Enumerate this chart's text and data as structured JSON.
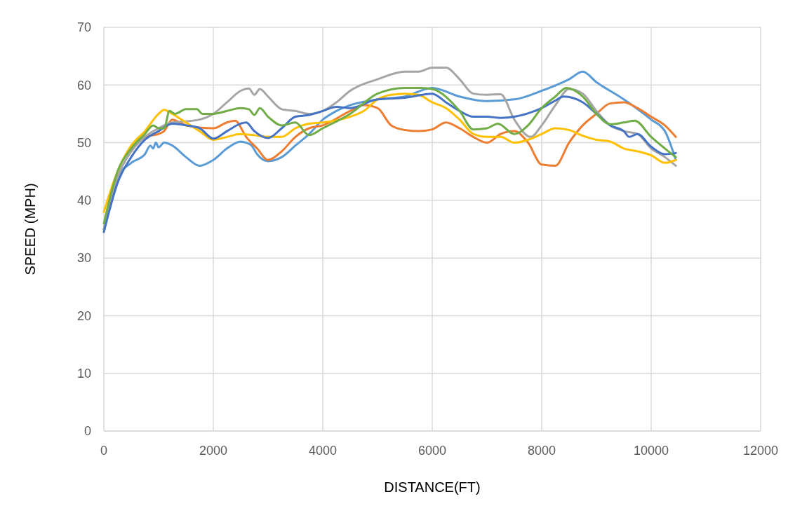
{
  "chart_data": {
    "type": "line",
    "xlabel": "DISTANCE(FT)",
    "ylabel": "SPEED (MPH)",
    "xlim": [
      0,
      12000
    ],
    "xticks": [
      0,
      2000,
      4000,
      6000,
      8000,
      10000,
      12000
    ],
    "ylim": [
      0,
      70
    ],
    "yticks": [
      0,
      10,
      20,
      30,
      40,
      50,
      60,
      70
    ],
    "grid": true,
    "series": [
      {
        "color": "#5b9bd5",
        "x": [
          0,
          250,
          500,
          750,
          850,
          900,
          950,
          1000,
          1100,
          1250,
          1500,
          1750,
          2000,
          2250,
          2500,
          2600,
          2700,
          2800,
          3000,
          3250,
          3500,
          3750,
          4000,
          4250,
          4500,
          5000,
          5500,
          6000,
          6500,
          7000,
          7500,
          8000,
          8500,
          8750,
          9000,
          9500,
          10000,
          10250,
          10450
        ],
        "values": [
          35,
          44,
          46.5,
          48,
          49.5,
          49,
          50,
          49.2,
          50,
          49.5,
          47.5,
          46,
          47,
          49,
          50.2,
          50,
          49.5,
          48,
          46.8,
          47.5,
          49.5,
          51.5,
          54,
          55.5,
          56.5,
          57.5,
          58,
          59.5,
          58,
          57.2,
          57.5,
          59,
          61,
          62.3,
          60.5,
          57.5,
          54,
          52,
          47
        ]
      },
      {
        "color": "#ed7d31",
        "x": [
          500,
          750,
          1000,
          1100,
          1250,
          1500,
          2000,
          2250,
          2400,
          2600,
          2800,
          3000,
          3250,
          3500,
          3750,
          4000,
          4500,
          4750,
          5000,
          5250,
          5500,
          5750,
          6000,
          6250,
          6500,
          6750,
          7000,
          7250,
          7500,
          7750,
          8000,
          8250,
          8500,
          8750,
          9000,
          9250,
          9500,
          9750,
          10000,
          10250,
          10450
        ],
        "values": [
          48.5,
          51,
          51.5,
          52,
          54,
          53,
          52.5,
          53.5,
          53.8,
          51,
          49,
          47,
          48.5,
          51,
          52.5,
          53,
          55.5,
          56.5,
          56,
          53,
          52.2,
          52,
          52.3,
          53.5,
          52.5,
          51,
          50,
          51.5,
          52,
          50,
          46.2,
          46,
          50,
          53,
          55,
          56.8,
          57,
          56,
          54.5,
          53,
          51
        ]
      },
      {
        "color": "#a5a5a5",
        "x": [
          0,
          250,
          500,
          750,
          1000,
          1250,
          1500,
          1750,
          2000,
          2250,
          2500,
          2650,
          2750,
          2850,
          3000,
          3250,
          3500,
          3750,
          4000,
          4250,
          4500,
          5000,
          5500,
          5750,
          6000,
          6250,
          6500,
          6750,
          7000,
          7250,
          7500,
          7800,
          8000,
          8250,
          8500,
          8750,
          9000,
          9250,
          9500,
          9750,
          10000,
          10250,
          10450
        ],
        "values": [
          35,
          44,
          48.5,
          51,
          52.5,
          53.5,
          53.7,
          54,
          55,
          57,
          59,
          59.4,
          58.3,
          59.3,
          58,
          55.8,
          55.5,
          55,
          55.5,
          57,
          59,
          61,
          62.3,
          62.3,
          63,
          63,
          61,
          58.5,
          58.3,
          58.4,
          54,
          51,
          53,
          56.5,
          59.3,
          58.5,
          55.5,
          53,
          52,
          51.5,
          49,
          47.5,
          46
        ]
      },
      {
        "color": "#ffc000",
        "x": [
          0,
          250,
          500,
          750,
          1000,
          1100,
          1250,
          1500,
          1750,
          2000,
          2250,
          2500,
          2750,
          3000,
          3250,
          3500,
          3750,
          4000,
          4500,
          4750,
          5000,
          5250,
          5500,
          5750,
          6000,
          6250,
          6500,
          6750,
          7000,
          7250,
          7500,
          7750,
          8000,
          8250,
          8500,
          8750,
          9000,
          9250,
          9500,
          9750,
          10000,
          10250,
          10450
        ],
        "values": [
          38,
          45,
          49.5,
          52,
          55,
          55.7,
          55,
          53.5,
          52,
          50.5,
          51,
          51.5,
          51.3,
          51,
          51,
          52.5,
          53.3,
          53.5,
          54.5,
          55.5,
          57.5,
          58.3,
          58.5,
          58.3,
          57,
          56,
          54,
          51.5,
          51,
          51,
          50,
          50.5,
          51.5,
          52.5,
          52.2,
          51.2,
          50.5,
          50.2,
          49,
          48.5,
          47.8,
          46.5,
          47
        ]
      },
      {
        "color": "#4472c4",
        "x": [
          0,
          250,
          500,
          750,
          1000,
          1250,
          1500,
          1750,
          2000,
          2250,
          2500,
          2600,
          2750,
          3000,
          3250,
          3500,
          3750,
          4000,
          4250,
          4500,
          5000,
          5500,
          6000,
          6250,
          6500,
          6750,
          7000,
          7250,
          7500,
          8000,
          8250,
          8400,
          8750,
          9000,
          9250,
          9500,
          9600,
          9750,
          10000,
          10250,
          10450
        ],
        "values": [
          34.5,
          43,
          47.5,
          50.5,
          52,
          53.3,
          53,
          52.5,
          50.7,
          52,
          53.3,
          53.5,
          52,
          50.8,
          52.5,
          54.5,
          54.8,
          55.5,
          56.2,
          56,
          57.5,
          57.8,
          58.5,
          57,
          55.5,
          54.5,
          54.5,
          54.3,
          54.5,
          56,
          57.3,
          58,
          57,
          55,
          53,
          52,
          51,
          51.5,
          49.3,
          48,
          48.2
        ]
      },
      {
        "color": "#70ad47",
        "x": [
          0,
          250,
          500,
          750,
          900,
          1000,
          1100,
          1200,
          1300,
          1500,
          1700,
          1800,
          2000,
          2250,
          2500,
          2650,
          2750,
          2850,
          3000,
          3250,
          3500,
          3750,
          4000,
          4500,
          5000,
          5500,
          5800,
          6000,
          6500,
          6750,
          7000,
          7200,
          7500,
          7750,
          8000,
          8250,
          8450,
          8750,
          9000,
          9250,
          9500,
          9700,
          10000,
          10250,
          10450
        ],
        "values": [
          36,
          45,
          49,
          51.5,
          53,
          52.5,
          52.5,
          55.5,
          55,
          55.8,
          55.8,
          55,
          55,
          55.5,
          56,
          55.8,
          54.8,
          56,
          54.5,
          53,
          53.5,
          51.3,
          52.5,
          55,
          58.5,
          59.5,
          59.5,
          59.3,
          55.5,
          52.3,
          52.5,
          53.3,
          51.5,
          53,
          56,
          58,
          59.5,
          58,
          55,
          53.2,
          53.5,
          53.8,
          51,
          49,
          47.5
        ]
      }
    ]
  }
}
